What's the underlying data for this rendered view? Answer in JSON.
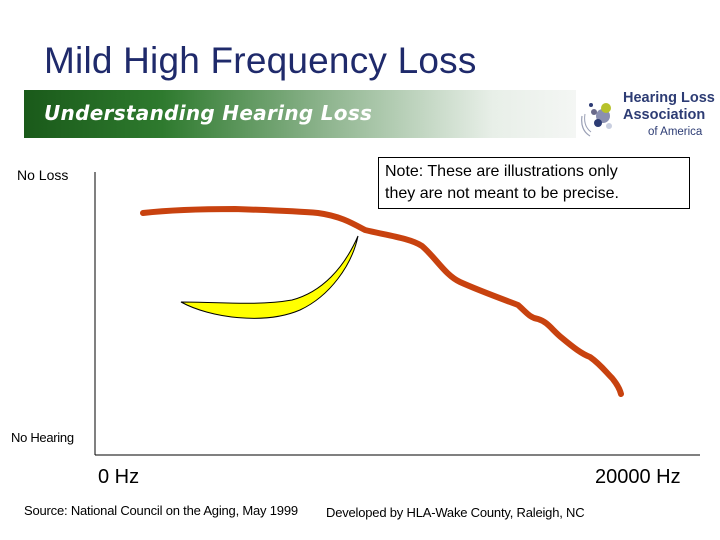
{
  "slide": {
    "title": "Mild High Frequency Loss",
    "banner": "Understanding Hearing Loss"
  },
  "logo": {
    "line1": "Hearing Loss",
    "line2": "Association",
    "line3": "of America",
    "colors": {
      "text": "#2d3c74",
      "dots": [
        "#2d3c74",
        "#8a8fb0",
        "#b7c22a",
        "#6a6a8a",
        "#c9cfe0"
      ]
    }
  },
  "chart": {
    "y_label_top": "No Loss",
    "y_label_bottom": "No Hearing",
    "x_label_left": "0 Hz",
    "x_label_right": "20000 Hz",
    "note_line1": "Note:  These are illustrations only",
    "note_line2": "they are not meant to be precise.",
    "colors": {
      "curve": "#c8420f",
      "banana": "#ffff00",
      "axis": "#000000"
    }
  },
  "footer": {
    "source": "Source: National Council on the Aging, May 1999",
    "credit": "Developed by HLA-Wake County, Raleigh, NC"
  },
  "colors": {
    "title": "#1f2a6b",
    "banner_dark": "#1a5a1a",
    "banner_light": "#f4f6f4"
  }
}
